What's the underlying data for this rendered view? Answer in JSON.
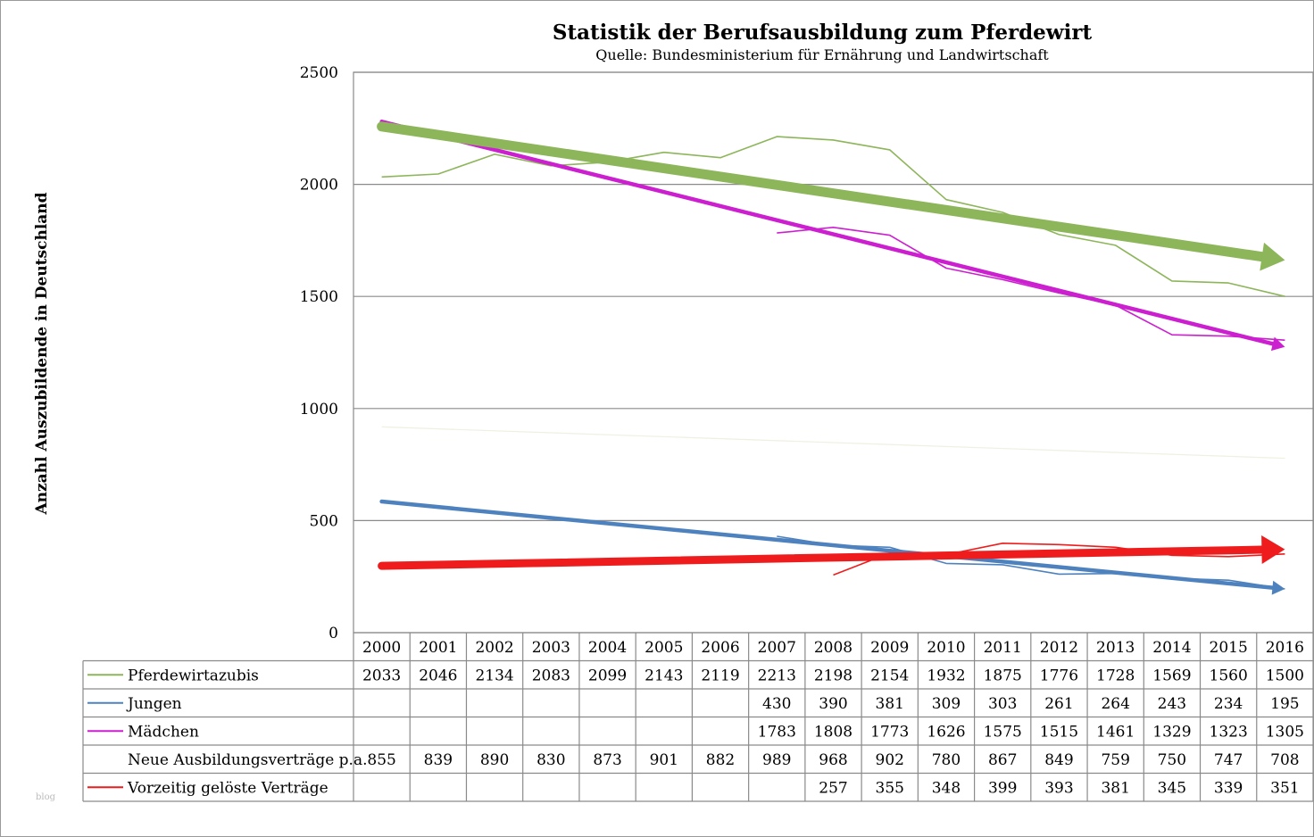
{
  "chart_data": {
    "type": "line",
    "title": "Statistik der Berufsausbildung zum Pferdewirt",
    "subtitle": "Quelle: Bundesministerium für Ernährung und Landwirtschaft",
    "ylabel": "Anzahl Auszubildende in Deutschland",
    "xlabel": "",
    "ylim": [
      0,
      2500
    ],
    "yticks": [
      0,
      500,
      1000,
      1500,
      2000,
      2500
    ],
    "categories": [
      2000,
      2001,
      2002,
      2003,
      2004,
      2005,
      2006,
      2007,
      2008,
      2009,
      2010,
      2011,
      2012,
      2013,
      2014,
      2015,
      2016
    ],
    "grid": true,
    "legend": "data-table",
    "series": [
      {
        "name": "Pferdewirtazubis",
        "color": "#8db55a",
        "plotted": true,
        "values": [
          2033,
          2046,
          2134,
          2083,
          2099,
          2143,
          2119,
          2213,
          2198,
          2154,
          1932,
          1875,
          1776,
          1728,
          1569,
          1560,
          1500
        ],
        "trend": [
          2258,
          1662
        ]
      },
      {
        "name": "Jungen",
        "color": "#4e82be",
        "plotted": true,
        "values": [
          null,
          null,
          null,
          null,
          null,
          null,
          null,
          430,
          390,
          381,
          309,
          303,
          261,
          264,
          243,
          234,
          195
        ],
        "trend": [
          585,
          195
        ]
      },
      {
        "name": "Mädchen",
        "color": "#cc1fd0",
        "plotted": true,
        "values": [
          null,
          null,
          null,
          null,
          null,
          null,
          null,
          1783,
          1808,
          1773,
          1626,
          1575,
          1515,
          1461,
          1329,
          1323,
          1305
        ],
        "trend": [
          2280,
          1275
        ]
      },
      {
        "name": "Neue Ausbildungsverträge p.a.",
        "color": "",
        "plotted": false,
        "values": [
          855,
          839,
          890,
          830,
          873,
          901,
          882,
          989,
          968,
          902,
          780,
          867,
          849,
          759,
          750,
          747,
          708
        ],
        "trend": [
          918,
          778
        ]
      },
      {
        "name": "Vorzeitig gelöste Verträge",
        "color": "#ee1c1c",
        "plotted": true,
        "values": [
          null,
          null,
          null,
          null,
          null,
          null,
          null,
          null,
          257,
          355,
          348,
          399,
          393,
          381,
          345,
          339,
          351
        ],
        "trend": [
          298,
          372
        ]
      }
    ],
    "trend_colors": {
      "Pferdewirtazubis": "#8db55a",
      "Jungen": "#4e82be",
      "Mädchen": "#cc1fd0",
      "Neue Ausbildungsverträge p.a.": "#efefe2",
      "Vorzeitig gelöste Verträge": "#ee1c1c"
    }
  },
  "watermark": "blog"
}
